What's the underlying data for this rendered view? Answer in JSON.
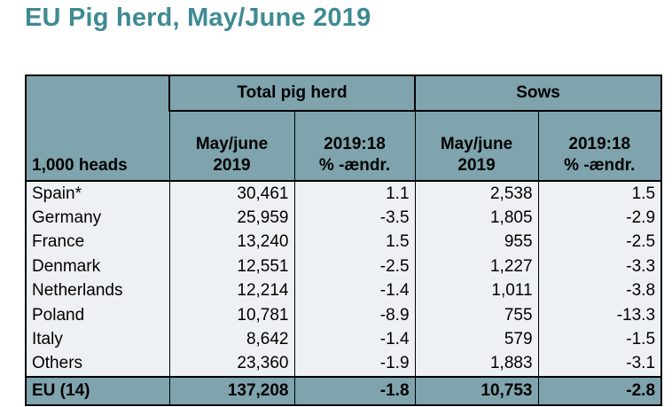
{
  "title": "EU Pig herd, May/June 2019",
  "chart_data": {
    "type": "table",
    "groups": [
      "Total pig herd",
      "Sows"
    ],
    "units_label": "1,000 heads",
    "columns": [
      {
        "line1": "May/june",
        "line2": "2019"
      },
      {
        "line1": "2019:18",
        "line2": "% -ændr."
      },
      {
        "line1": "May/june",
        "line2": "2019"
      },
      {
        "line1": "2019:18",
        "line2": "% -ændr."
      }
    ],
    "rows": [
      {
        "name": "Spain*",
        "values": [
          "30,461",
          "1.1",
          "2,538",
          "1.5"
        ]
      },
      {
        "name": "Germany",
        "values": [
          "25,959",
          "-3.5",
          "1,805",
          "-2.9"
        ]
      },
      {
        "name": "France",
        "values": [
          "13,240",
          "1.5",
          "955",
          "-2.5"
        ]
      },
      {
        "name": "Denmark",
        "values": [
          "12,551",
          "-2.5",
          "1,227",
          "-3.3"
        ]
      },
      {
        "name": "Netherlands",
        "values": [
          "12,214",
          "-1.4",
          "1,011",
          "-3.8"
        ]
      },
      {
        "name": "Poland",
        "values": [
          "10,781",
          "-8.9",
          "755",
          "-13.3"
        ]
      },
      {
        "name": "Italy",
        "values": [
          "8,642",
          "-1.4",
          "579",
          "-1.5"
        ]
      },
      {
        "name": "Others",
        "values": [
          "23,360",
          "-1.9",
          "1,883",
          "-3.1"
        ]
      }
    ],
    "total": {
      "name": "EU (14)",
      "values": [
        "137,208",
        "-1.8",
        "10,753",
        "-2.8"
      ]
    }
  },
  "colors": {
    "title": "#3e8a93",
    "header_bg": "#7fa4ad",
    "body_bg": "#eef1f3"
  }
}
